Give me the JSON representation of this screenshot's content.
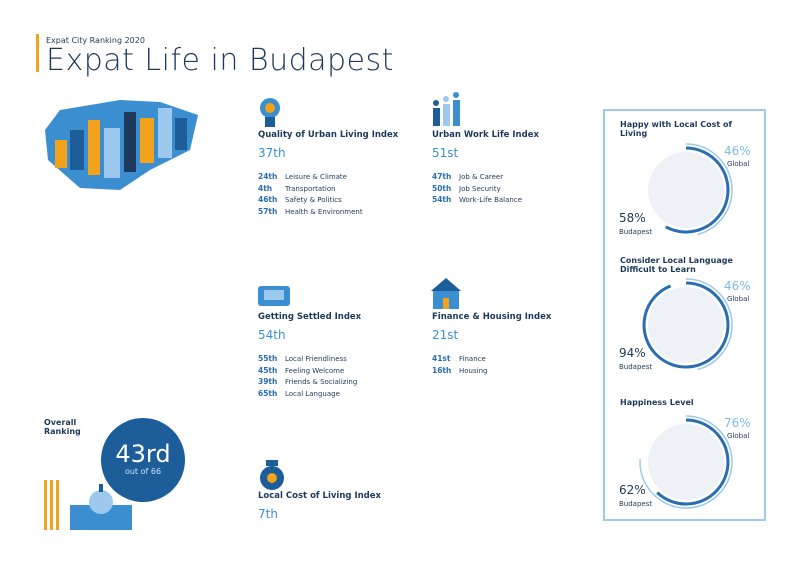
{
  "header": {
    "subtitle": "Expat City Ranking 2020",
    "title": "Expat Life in Budapest"
  },
  "indices": [
    {
      "title": "Quality of Urban Living Index",
      "rank": "37th",
      "items": [
        {
          "rank": "24th",
          "label": "Leisure & Climate"
        },
        {
          "rank": "4th",
          "label": "Transportation"
        },
        {
          "rank": "46th",
          "label": "Safety & Politics"
        },
        {
          "rank": "57th",
          "label": "Health & Environment"
        }
      ]
    },
    {
      "title": "Urban Work Life Index",
      "rank": "51st",
      "items": [
        {
          "rank": "47th",
          "label": "Job & Career"
        },
        {
          "rank": "50th",
          "label": "Job Security"
        },
        {
          "rank": "54th",
          "label": "Work-Life Balance"
        }
      ]
    },
    {
      "title": "Getting Settled Index",
      "rank": "54th",
      "items": [
        {
          "rank": "55th",
          "label": "Local Friendliness"
        },
        {
          "rank": "45th",
          "label": "Feeling Welcome"
        },
        {
          "rank": "39th",
          "label": "Friends & Socializing"
        },
        {
          "rank": "65th",
          "label": "Local Language"
        }
      ]
    },
    {
      "title": "Finance & Housing Index",
      "rank": "21st",
      "items": [
        {
          "rank": "41st",
          "label": "Finance"
        },
        {
          "rank": "16th",
          "label": "Housing"
        }
      ]
    },
    {
      "title": "Local Cost of Living Index",
      "rank": "7th",
      "items": []
    }
  ],
  "overall": {
    "label": "Overall Ranking",
    "rank": "43rd",
    "out_of": "out of 66"
  },
  "gauges": [
    {
      "title": "Happy with Local Cost of Living",
      "global": {
        "value": 46,
        "label": "46%"
      },
      "global_label": "Global",
      "budapest": {
        "value": 58,
        "label": "58%"
      },
      "budapest_label": "Budapest"
    },
    {
      "title": "Consider Local Language Difficult to Learn",
      "global": {
        "value": 46,
        "label": "46%"
      },
      "global_label": "Global",
      "budapest": {
        "value": 94,
        "label": "94%"
      },
      "budapest_label": "Budapest"
    },
    {
      "title": "Happiness Level",
      "global": {
        "value": 76,
        "label": "76%"
      },
      "global_label": "Global",
      "budapest": {
        "value": 62,
        "label": "62%"
      },
      "budapest_label": "Budapest"
    }
  ]
}
